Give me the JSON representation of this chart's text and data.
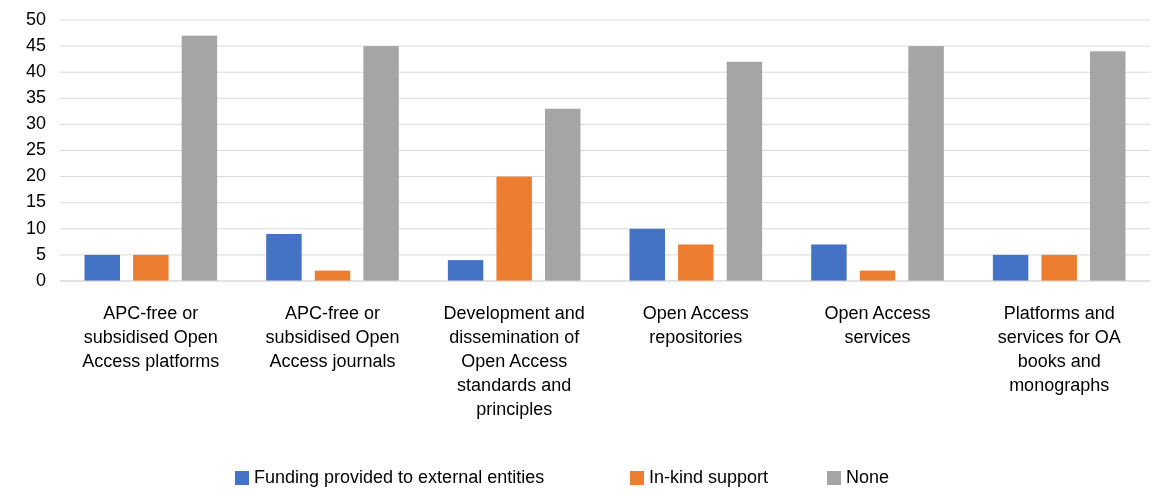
{
  "chart_data": {
    "type": "bar",
    "categories": [
      "APC-free or subsidised Open Access platforms",
      "APC-free or subsidised Open Access journals",
      "Development and dissemination of Open Access standards and principles",
      "Open Access repositories",
      "Open Access services",
      "Platforms and services for OA books and monographs"
    ],
    "series": [
      {
        "name": "Funding provided to external entities",
        "color": "#4472c4",
        "values": [
          5,
          9,
          4,
          10,
          7,
          5
        ]
      },
      {
        "name": "In-kind support",
        "color": "#ed7d31",
        "values": [
          5,
          2,
          20,
          7,
          2,
          5
        ]
      },
      {
        "name": "None",
        "color": "#a5a5a5",
        "values": [
          47,
          45,
          33,
          42,
          45,
          44
        ]
      }
    ],
    "ylim": [
      0,
      50
    ],
    "yticks": [
      0,
      5,
      10,
      15,
      20,
      25,
      30,
      35,
      40,
      45,
      50
    ],
    "grid": "y",
    "legend": "bottom"
  }
}
